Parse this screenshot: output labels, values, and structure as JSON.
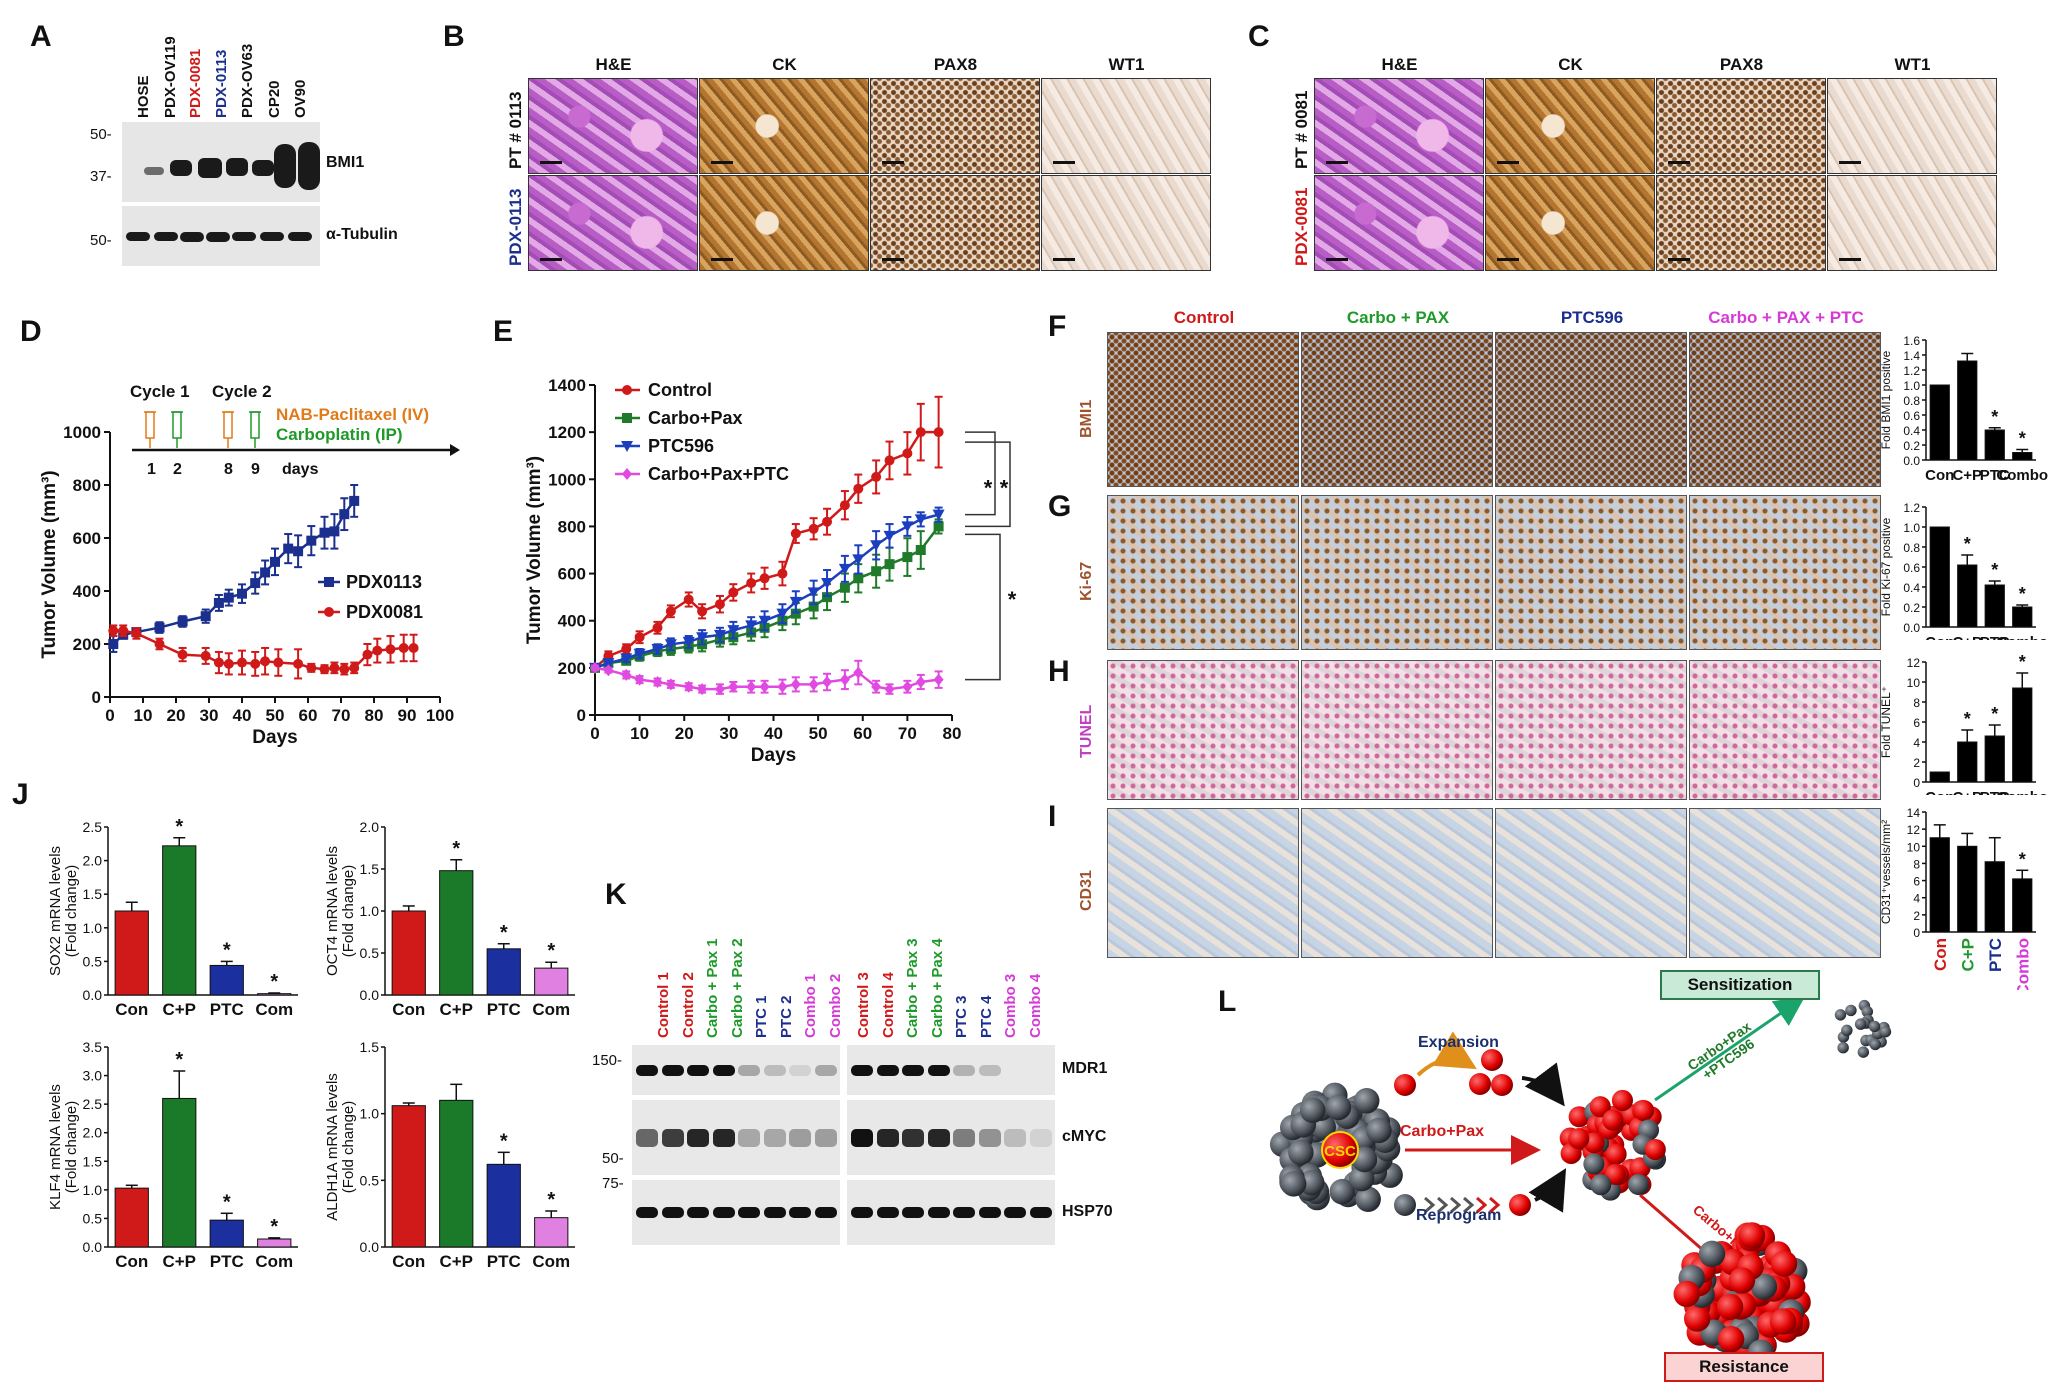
{
  "panels": {
    "A": "A",
    "B": "B",
    "C": "C",
    "D": "D",
    "E": "E",
    "F": "F",
    "G": "G",
    "H": "H",
    "I": "I",
    "J": "J",
    "K": "K",
    "L": "L"
  },
  "panelA": {
    "lanes": [
      "HOSE",
      "PDX-OV119",
      "PDX-0081",
      "PDX-0113",
      "PDX-OV63",
      "CP20",
      "OV90"
    ],
    "lane_colors": [
      "#111111",
      "#111111",
      "#d01a1a",
      "#1b2f8f",
      "#111111",
      "#111111",
      "#111111"
    ],
    "markers_top": [
      "50-",
      "37-"
    ],
    "marker_bottom": "50-",
    "protein_top": "BMI1",
    "protein_bottom": "α-Tubulin"
  },
  "panelB": {
    "columns": [
      "H&E",
      "CK",
      "PAX8",
      "WT1"
    ],
    "rows": [
      {
        "label": "PT # 0113",
        "color": "#111111"
      },
      {
        "label": "PDX-0113",
        "color": "#1b2f8f"
      }
    ]
  },
  "panelC": {
    "columns": [
      "H&E",
      "CK",
      "PAX8",
      "WT1"
    ],
    "rows": [
      {
        "label": "PT # 0081",
        "color": "#111111"
      },
      {
        "label": "PDX-0081",
        "color": "#d01a1a"
      }
    ]
  },
  "panelD": {
    "schedule": {
      "cycle1": "Cycle 1",
      "cycle2": "Cycle 2",
      "days": [
        "1",
        "2",
        "8",
        "9"
      ],
      "days_label": "days",
      "drug1": "NAB-Paclitaxel (IV)",
      "drug2": "Carboplatin (IP)",
      "drug1_color": "#e07b1a",
      "drug2_color": "#1f9a2a"
    },
    "legend": [
      "PDX0113",
      "PDX0081"
    ]
  },
  "panelE": {
    "legend": [
      "Control",
      "Carbo+Pax",
      "PTC596",
      "Carbo+Pax+PTC"
    ],
    "sig": [
      "*",
      "*",
      "*"
    ]
  },
  "panelFI": {
    "columns": [
      {
        "label": "Control",
        "color": "#d01a1a"
      },
      {
        "label": "Carbo + PAX",
        "color": "#1f9a2a"
      },
      {
        "label": "PTC596",
        "color": "#1b2f8f"
      },
      {
        "label": "Carbo + PAX + PTC",
        "color": "#d63ad6"
      }
    ],
    "rows": [
      {
        "letter": "F",
        "label": "BMI1",
        "color": "#a0522d"
      },
      {
        "letter": "G",
        "label": "Ki-67",
        "color": "#a0522d"
      },
      {
        "letter": "H",
        "label": "TUNEL",
        "color": "#c040c0"
      },
      {
        "letter": "I",
        "label": "CD31",
        "color": "#a0522d"
      }
    ],
    "x_labels": [
      {
        "label": "Con",
        "color": "#d01a1a"
      },
      {
        "label": "C+P",
        "color": "#1f9a2a"
      },
      {
        "label": "PTC",
        "color": "#1b2f8f"
      },
      {
        "label": "Combo",
        "color": "#d63ad6"
      }
    ]
  },
  "panelK": {
    "lanes_left": [
      {
        "label": "Control 1",
        "color": "#d01a1a"
      },
      {
        "label": "Control 2",
        "color": "#d01a1a"
      },
      {
        "label": "Carbo + Pax 1",
        "color": "#1f9a2a"
      },
      {
        "label": "Carbo + Pax 2",
        "color": "#1f9a2a"
      },
      {
        "label": "PTC 1",
        "color": "#1b2f8f"
      },
      {
        "label": "PTC 2",
        "color": "#1b2f8f"
      },
      {
        "label": "Combo 1",
        "color": "#d63ad6"
      },
      {
        "label": "Combo 2",
        "color": "#d63ad6"
      }
    ],
    "lanes_right": [
      {
        "label": "Control 3",
        "color": "#d01a1a"
      },
      {
        "label": "Control 4",
        "color": "#d01a1a"
      },
      {
        "label": "Carbo + Pax 3",
        "color": "#1f9a2a"
      },
      {
        "label": "Carbo + Pax 4",
        "color": "#1f9a2a"
      },
      {
        "label": "PTC 3",
        "color": "#1b2f8f"
      },
      {
        "label": "PTC 4",
        "color": "#1b2f8f"
      },
      {
        "label": "Combo 3",
        "color": "#d63ad6"
      },
      {
        "label": "Combo 4",
        "color": "#d63ad6"
      }
    ],
    "markers": [
      "150-",
      "50-",
      "75-"
    ],
    "proteins": [
      "MDR1",
      "cMYC",
      "HSP70"
    ]
  },
  "panelL": {
    "csc": "CSC",
    "expansion": "Expansion",
    "carbo_pax": "Carbo+Pax",
    "reprogram": "Reprogram",
    "sens_arrow": "Carbo+Pax\n+PTC596",
    "res_arrow": "Carbo+Pax",
    "sensitization": "Sensitization",
    "resistance": "Resistance"
  },
  "chart_data": [
    {
      "id": "D",
      "type": "line",
      "ylabel": "Tumor Volume (mm³)",
      "xlabel": "Days",
      "xlim": [
        0,
        100
      ],
      "ylim": [
        0,
        1000
      ],
      "xticks": [
        0,
        10,
        20,
        30,
        40,
        50,
        60,
        70,
        80,
        90,
        100
      ],
      "yticks": [
        0,
        200,
        400,
        600,
        800,
        1000
      ],
      "series": [
        {
          "name": "PDX0113",
          "color": "#1b2f8f",
          "marker": "square",
          "x": [
            1,
            4,
            8,
            15,
            22,
            29,
            33,
            36,
            40,
            44,
            47,
            50,
            54,
            57,
            61,
            65,
            68,
            71,
            74
          ],
          "y": [
            200,
            235,
            245,
            262,
            285,
            305,
            355,
            375,
            390,
            430,
            470,
            510,
            560,
            550,
            590,
            620,
            625,
            690,
            740
          ],
          "err": [
            30,
            15,
            15,
            20,
            20,
            25,
            30,
            30,
            35,
            40,
            45,
            50,
            55,
            60,
            55,
            60,
            65,
            60,
            60
          ]
        },
        {
          "name": "PDX0081",
          "color": "#d01a1a",
          "marker": "circle",
          "x": [
            1,
            4,
            8,
            15,
            22,
            29,
            33,
            36,
            40,
            44,
            47,
            51,
            57,
            61,
            65,
            68,
            71,
            74,
            78,
            81,
            85,
            89,
            92
          ],
          "y": [
            250,
            250,
            240,
            200,
            160,
            155,
            130,
            125,
            130,
            125,
            135,
            130,
            125,
            110,
            105,
            110,
            105,
            110,
            160,
            175,
            180,
            185,
            185
          ],
          "err": [
            20,
            20,
            20,
            20,
            25,
            30,
            40,
            40,
            45,
            45,
            50,
            50,
            55,
            15,
            15,
            20,
            20,
            20,
            40,
            45,
            50,
            50,
            50
          ]
        }
      ]
    },
    {
      "id": "E",
      "type": "line",
      "ylabel": "Tumor Volume (mm³)",
      "xlabel": "Days",
      "xlim": [
        0,
        80
      ],
      "ylim": [
        0,
        1400
      ],
      "xticks": [
        0,
        10,
        20,
        30,
        40,
        50,
        60,
        70,
        80
      ],
      "yticks": [
        0,
        200,
        400,
        600,
        800,
        1000,
        1200,
        1400
      ],
      "series": [
        {
          "name": "Control",
          "color": "#d01a1a",
          "marker": "circle",
          "x": [
            0,
            3,
            7,
            10,
            14,
            17,
            21,
            24,
            28,
            31,
            35,
            38,
            42,
            45,
            49,
            52,
            56,
            59,
            63,
            66,
            70,
            73,
            77
          ],
          "y": [
            200,
            250,
            280,
            330,
            370,
            440,
            490,
            440,
            470,
            520,
            560,
            580,
            600,
            770,
            790,
            820,
            890,
            960,
            1010,
            1080,
            1110,
            1200,
            1200
          ],
          "err": [
            15,
            20,
            20,
            25,
            25,
            25,
            30,
            30,
            35,
            35,
            40,
            45,
            50,
            40,
            45,
            55,
            60,
            60,
            70,
            80,
            90,
            120,
            150
          ]
        },
        {
          "name": "Carbo+Pax",
          "color": "#1f7a2a",
          "marker": "square",
          "x": [
            0,
            3,
            7,
            10,
            14,
            17,
            21,
            24,
            28,
            31,
            35,
            38,
            42,
            45,
            49,
            52,
            56,
            59,
            63,
            66,
            70,
            73,
            77
          ],
          "y": [
            200,
            220,
            230,
            250,
            270,
            280,
            290,
            300,
            320,
            330,
            350,
            370,
            400,
            430,
            460,
            500,
            540,
            580,
            610,
            640,
            670,
            700,
            800
          ],
          "err": [
            10,
            15,
            15,
            20,
            20,
            25,
            25,
            30,
            30,
            30,
            35,
            40,
            40,
            45,
            50,
            55,
            60,
            60,
            70,
            70,
            80,
            80,
            30
          ]
        },
        {
          "name": "PTC596",
          "color": "#1b3fbf",
          "marker": "triangle-down",
          "x": [
            0,
            3,
            7,
            10,
            14,
            17,
            21,
            24,
            28,
            31,
            35,
            38,
            42,
            45,
            49,
            52,
            56,
            59,
            63,
            66,
            70,
            73,
            77
          ],
          "y": [
            200,
            220,
            240,
            260,
            280,
            300,
            310,
            330,
            340,
            360,
            380,
            400,
            430,
            480,
            520,
            560,
            620,
            660,
            720,
            760,
            800,
            830,
            850
          ],
          "err": [
            10,
            15,
            15,
            20,
            20,
            25,
            25,
            30,
            30,
            35,
            35,
            40,
            40,
            45,
            50,
            55,
            55,
            60,
            60,
            50,
            40,
            30,
            30
          ]
        },
        {
          "name": "Carbo+Pax+PTC",
          "color": "#e04ae0",
          "marker": "diamond",
          "x": [
            0,
            3,
            7,
            10,
            14,
            17,
            21,
            24,
            28,
            31,
            35,
            38,
            42,
            45,
            49,
            52,
            56,
            59,
            63,
            66,
            70,
            73,
            77
          ],
          "y": [
            200,
            190,
            170,
            150,
            140,
            130,
            120,
            110,
            110,
            120,
            120,
            120,
            120,
            130,
            130,
            140,
            150,
            180,
            120,
            110,
            120,
            140,
            150
          ],
          "err": [
            10,
            10,
            15,
            15,
            15,
            15,
            15,
            15,
            20,
            20,
            25,
            25,
            30,
            30,
            30,
            35,
            40,
            50,
            25,
            20,
            25,
            30,
            35
          ]
        }
      ]
    },
    {
      "id": "F",
      "type": "bar",
      "ylabel": "Fold BMI1 positive",
      "categories": [
        "Con",
        "C+P",
        "PTC",
        "Combo"
      ],
      "values": [
        1.0,
        1.32,
        0.4,
        0.1
      ],
      "err": [
        0,
        0.1,
        0.03,
        0.04
      ],
      "sig": [
        "",
        "",
        "*",
        "*"
      ],
      "ylim": [
        0,
        1.6
      ],
      "yticks": [
        0.0,
        0.2,
        0.4,
        0.6,
        0.8,
        1.0,
        1.2,
        1.4,
        1.6
      ]
    },
    {
      "id": "G",
      "type": "bar",
      "ylabel": "Fold Ki-67 positive",
      "categories": [
        "Con",
        "C+P",
        "PTC",
        "Combo"
      ],
      "values": [
        1.0,
        0.62,
        0.42,
        0.2
      ],
      "err": [
        0,
        0.1,
        0.04,
        0.02
      ],
      "sig": [
        "",
        "*",
        "*",
        "*"
      ],
      "ylim": [
        0,
        1.2
      ],
      "yticks": [
        0.0,
        0.2,
        0.4,
        0.6,
        0.8,
        1.0,
        1.2
      ]
    },
    {
      "id": "H",
      "type": "bar",
      "ylabel": "Fold TUNEL⁺",
      "categories": [
        "Con",
        "C+P",
        "PTC",
        "Combo"
      ],
      "values": [
        1.0,
        4.0,
        4.6,
        9.4
      ],
      "err": [
        0,
        1.2,
        1.1,
        1.5
      ],
      "sig": [
        "",
        "*",
        "*",
        "*"
      ],
      "ylim": [
        0,
        12
      ],
      "yticks": [
        0,
        2,
        4,
        6,
        8,
        10,
        12
      ]
    },
    {
      "id": "I",
      "type": "bar",
      "ylabel": "CD31⁺vessels/mm²",
      "categories": [
        "Con",
        "C+P",
        "PTC",
        "Combo"
      ],
      "values": [
        11.0,
        10.0,
        8.2,
        6.2
      ],
      "err": [
        1.5,
        1.5,
        2.8,
        1.0
      ],
      "sig": [
        "",
        "",
        "",
        "*"
      ],
      "ylim": [
        0,
        14
      ],
      "yticks": [
        0,
        2,
        4,
        6,
        8,
        10,
        12,
        14
      ]
    },
    {
      "id": "J1",
      "type": "bar",
      "ylabel": "SOX2 mRNA levels (Fold change)",
      "categories": [
        "Con",
        "C+P",
        "PTC",
        "Com"
      ],
      "values": [
        1.25,
        2.22,
        0.44,
        0.02
      ],
      "err": [
        0.13,
        0.12,
        0.06,
        0.01
      ],
      "sig": [
        "",
        "*",
        "*",
        "*"
      ],
      "ylim": [
        0,
        2.5
      ],
      "yticks": [
        0.0,
        0.5,
        1.0,
        1.5,
        2.0,
        2.5
      ]
    },
    {
      "id": "J2",
      "type": "bar",
      "ylabel": "OCT4 mRNA levels (Fold change)",
      "categories": [
        "Con",
        "C+P",
        "PTC",
        "Com"
      ],
      "values": [
        1.0,
        1.48,
        0.55,
        0.32
      ],
      "err": [
        0.06,
        0.13,
        0.06,
        0.07
      ],
      "sig": [
        "",
        "*",
        "*",
        "*"
      ],
      "ylim": [
        0,
        2.0
      ],
      "yticks": [
        0.0,
        0.5,
        1.0,
        1.5,
        2.0
      ]
    },
    {
      "id": "J3",
      "type": "bar",
      "ylabel": "KLF4 mRNA levels (Fold change)",
      "categories": [
        "Con",
        "C+P",
        "PTC",
        "Com"
      ],
      "values": [
        1.03,
        2.6,
        0.47,
        0.14
      ],
      "err": [
        0.05,
        0.48,
        0.12,
        0.02
      ],
      "sig": [
        "",
        "*",
        "*",
        "*"
      ],
      "ylim": [
        0,
        3.5
      ],
      "yticks": [
        0.0,
        0.5,
        1.0,
        1.5,
        2.0,
        2.5,
        3.0,
        3.5
      ]
    },
    {
      "id": "J4",
      "type": "bar",
      "ylabel": "ALDH1A mRNA levels (Fold change)",
      "categories": [
        "Con",
        "C+P",
        "PTC",
        "Com"
      ],
      "values": [
        1.06,
        1.1,
        0.62,
        0.22
      ],
      "err": [
        0.02,
        0.12,
        0.09,
        0.05
      ],
      "sig": [
        "",
        "",
        "*",
        "*"
      ],
      "ylim": [
        0,
        1.5
      ],
      "yticks": [
        0.0,
        0.5,
        1.0,
        1.5
      ]
    }
  ]
}
